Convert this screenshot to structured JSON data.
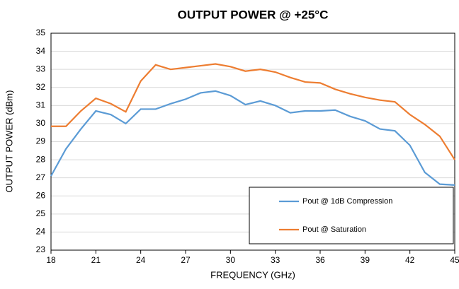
{
  "chart_data": {
    "type": "line",
    "title": "OUTPUT POWER @ +25°C",
    "xlabel": "FREQUENCY (GHz)",
    "ylabel": "OUTPUT POWER (dBm)",
    "x": [
      18,
      19,
      20,
      21,
      22,
      23,
      24,
      25,
      26,
      27,
      28,
      29,
      30,
      31,
      32,
      33,
      34,
      35,
      36,
      37,
      38,
      39,
      40,
      41,
      42,
      43,
      44,
      45
    ],
    "series": [
      {
        "name": "Pout @ 1dB Compression",
        "color": "#5b9bd5",
        "values": [
          27.1,
          28.6,
          29.7,
          30.7,
          30.5,
          30.0,
          30.8,
          30.8,
          31.1,
          31.35,
          31.7,
          31.8,
          31.55,
          31.05,
          31.25,
          31.0,
          30.6,
          30.7,
          30.7,
          30.75,
          30.4,
          30.15,
          29.7,
          29.6,
          28.8,
          27.3,
          26.65,
          26.6
        ]
      },
      {
        "name": "Pout @ Saturation",
        "color": "#ed7d31",
        "values": [
          29.85,
          29.85,
          30.7,
          31.4,
          31.1,
          30.65,
          32.35,
          33.25,
          33.0,
          33.1,
          33.2,
          33.3,
          33.15,
          32.9,
          33.0,
          32.85,
          32.55,
          32.3,
          32.25,
          31.9,
          31.65,
          31.45,
          31.3,
          31.2,
          30.5,
          29.95,
          29.3,
          28.0
        ]
      }
    ],
    "xlim": [
      18,
      45
    ],
    "xticks": [
      18,
      21,
      24,
      27,
      30,
      33,
      36,
      39,
      42,
      45
    ],
    "ylim": [
      23,
      35
    ],
    "yticks": [
      23,
      24,
      25,
      26,
      27,
      28,
      29,
      30,
      31,
      32,
      33,
      34,
      35
    ],
    "grid": true,
    "legend": "lower right"
  }
}
